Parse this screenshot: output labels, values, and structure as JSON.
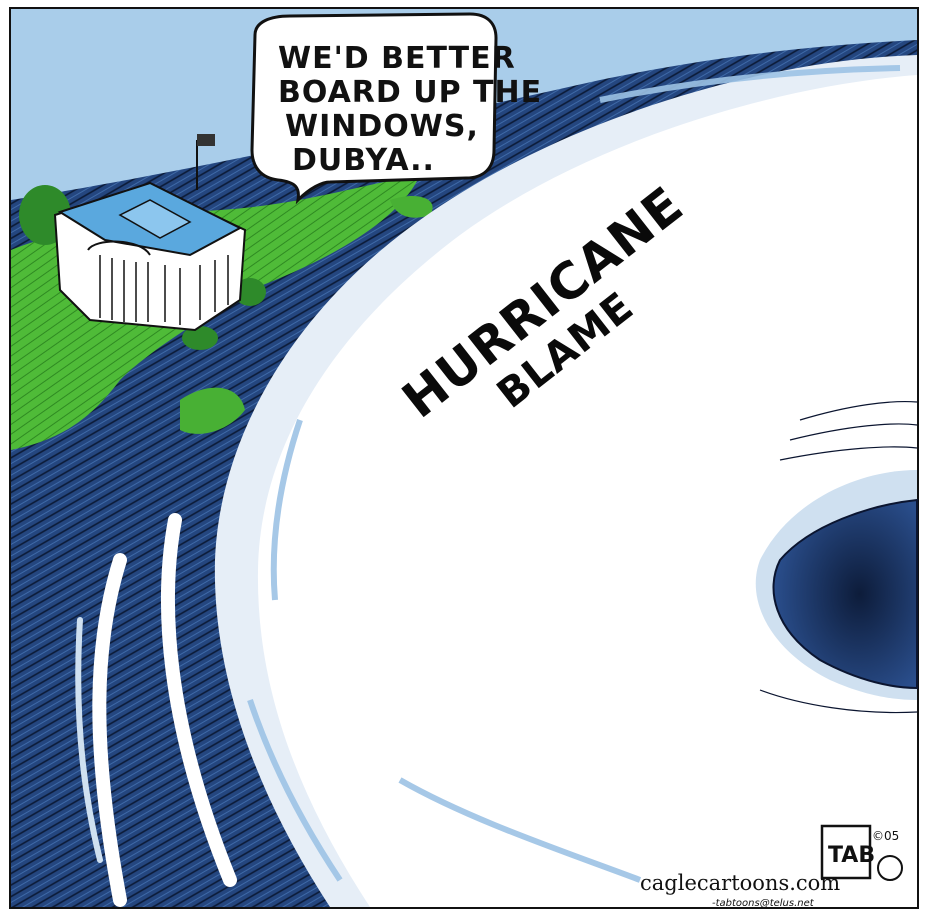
{
  "speech_bubble": {
    "line1": "WE'D BETTER",
    "line2": "BOARD UP THE",
    "line3": "WINDOWS,",
    "line4": "DUBYA.."
  },
  "storm_label": {
    "line1": "HURRICANE",
    "line2": "BLAME"
  },
  "credits": {
    "site": "caglecartoons.com",
    "signature": "TAB",
    "year_mark": "©05",
    "email": "-tabtoons@telus.net"
  },
  "colors": {
    "sky": "#a9cdea",
    "ocean": "#1f3f77",
    "land": "#55c43d",
    "cloud": "#ffffff",
    "cloud_shade": "#cfe0f0",
    "border": "#111111"
  }
}
